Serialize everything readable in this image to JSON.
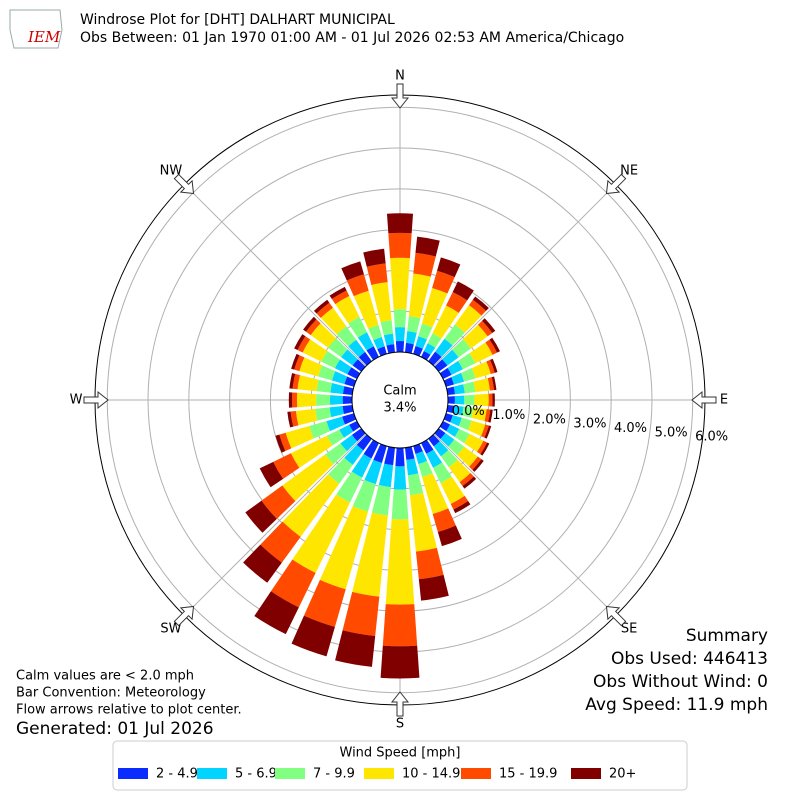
{
  "logo": "IEM",
  "chart_data": {
    "type": "windrose",
    "title": "Windrose Plot for [DHT] DALHART MUNICIPAL",
    "subtitle": "Obs Between: 01 Jan 1970 01:00 AM - 01 Jul 2026 02:53 AM America/Chicago",
    "x": [
      0,
      10,
      20,
      30,
      40,
      50,
      60,
      70,
      80,
      90,
      100,
      110,
      120,
      130,
      140,
      150,
      160,
      170,
      180,
      190,
      200,
      210,
      220,
      230,
      240,
      250,
      260,
      270,
      280,
      290,
      300,
      310,
      320,
      330,
      340,
      350
    ],
    "compass": [
      {
        "value": 0,
        "label": "N"
      },
      {
        "value": 45,
        "label": "NE"
      },
      {
        "value": 90,
        "label": "E"
      },
      {
        "value": 135,
        "label": "SE"
      },
      {
        "value": 180,
        "label": "S"
      },
      {
        "value": 225,
        "label": "SW"
      },
      {
        "value": 270,
        "label": "W"
      },
      {
        "value": 315,
        "label": "NW"
      }
    ],
    "ylim": [
      0,
      6.3
    ],
    "yticks": [
      {
        "value": 0,
        "label": "0.0%"
      },
      {
        "value": 1,
        "label": "1.0%"
      },
      {
        "value": 2,
        "label": "2.0%"
      },
      {
        "value": 3,
        "label": "3.0%"
      },
      {
        "value": 4,
        "label": "4.0%"
      },
      {
        "value": 5,
        "label": "5.0%"
      },
      {
        "value": 6,
        "label": "6.0%"
      }
    ],
    "grid": true,
    "calm_label": "Calm",
    "calm_value": 3.4,
    "calm_value_label": "3.4%",
    "legend_title": "Wind Speed [mph]",
    "series": [
      {
        "name": "2 - 4.9",
        "color": "#0a2cff",
        "values": [
          0.27,
          0.23,
          0.2,
          0.16,
          0.29,
          0.26,
          0.23,
          0.2,
          0.18,
          0.17,
          0.17,
          0.17,
          0.19,
          0.2,
          0.23,
          0.29,
          0.2,
          0.3,
          0.45,
          0.43,
          0.43,
          0.42,
          0.35,
          0.28,
          0.21,
          0.3,
          0.24,
          0.23,
          0.23,
          0.24,
          0.26,
          0.26,
          0.28,
          0.29,
          0.19,
          0.2
        ]
      },
      {
        "name": "5 - 6.9",
        "color": "#00d4ff",
        "values": [
          0.34,
          0.29,
          0.25,
          0.21,
          0.39,
          0.34,
          0.31,
          0.26,
          0.24,
          0.23,
          0.22,
          0.23,
          0.25,
          0.27,
          0.3,
          0.38,
          0.26,
          0.38,
          0.57,
          0.54,
          0.54,
          0.52,
          0.44,
          0.35,
          0.27,
          0.4,
          0.32,
          0.31,
          0.31,
          0.32,
          0.34,
          0.35,
          0.37,
          0.38,
          0.24,
          0.26
        ]
      },
      {
        "name": "7 - 9.9",
        "color": "#80ff80",
        "values": [
          0.44,
          0.37,
          0.32,
          0.27,
          0.43,
          0.37,
          0.34,
          0.29,
          0.26,
          0.25,
          0.24,
          0.25,
          0.28,
          0.3,
          0.33,
          0.42,
          0.33,
          0.49,
          0.73,
          0.7,
          0.7,
          0.68,
          0.57,
          0.46,
          0.34,
          0.44,
          0.35,
          0.34,
          0.34,
          0.35,
          0.37,
          0.39,
          0.41,
          0.42,
          0.31,
          0.33
        ]
      },
      {
        "name": "10 - 14.9",
        "color": "#ffe600",
        "values": [
          1.26,
          1.05,
          0.91,
          0.76,
          0.59,
          0.51,
          0.47,
          0.39,
          0.36,
          0.35,
          0.33,
          0.35,
          0.38,
          0.41,
          0.45,
          0.57,
          0.94,
          1.39,
          2.09,
          2.0,
          1.98,
          1.92,
          1.61,
          1.3,
          0.98,
          0.6,
          0.48,
          0.47,
          0.47,
          0.48,
          0.51,
          0.53,
          0.56,
          0.57,
          0.87,
          0.94
        ]
      },
      {
        "name": "15 - 19.9",
        "color": "#ff4a00",
        "values": [
          0.61,
          0.51,
          0.44,
          0.37,
          0.16,
          0.14,
          0.12,
          0.1,
          0.1,
          0.09,
          0.09,
          0.09,
          0.1,
          0.11,
          0.12,
          0.15,
          0.46,
          0.68,
          1.02,
          0.97,
          0.96,
          0.94,
          0.78,
          0.63,
          0.48,
          0.16,
          0.13,
          0.12,
          0.12,
          0.13,
          0.14,
          0.14,
          0.15,
          0.15,
          0.42,
          0.46
        ]
      },
      {
        "name": "20+",
        "color": "#800000",
        "values": [
          0.48,
          0.4,
          0.34,
          0.29,
          0.1,
          0.09,
          0.08,
          0.07,
          0.06,
          0.06,
          0.06,
          0.06,
          0.06,
          0.07,
          0.08,
          0.1,
          0.36,
          0.53,
          0.79,
          0.76,
          0.75,
          0.73,
          0.61,
          0.49,
          0.37,
          0.1,
          0.08,
          0.08,
          0.08,
          0.08,
          0.09,
          0.09,
          0.09,
          0.1,
          0.33,
          0.36
        ]
      }
    ]
  },
  "notes": [
    "Calm values are < 2.0 mph",
    "Bar Convention: Meteorology",
    "Flow arrows relative to plot center."
  ],
  "generated": "Generated: 01 Jul 2026",
  "summary": {
    "title": "Summary",
    "lines": [
      "Obs Used: 446413",
      "Obs Without Wind: 0",
      "Avg Speed: 11.9 mph"
    ]
  }
}
